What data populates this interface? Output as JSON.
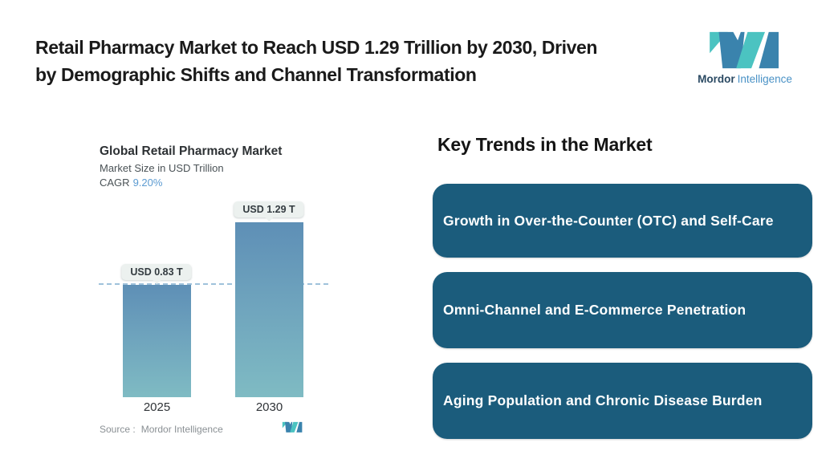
{
  "header": {
    "title_lines": [
      "Retail Pharmacy Market to Reach USD 1.29 Trillion by 2030, Driven",
      "by Demographic Shifts and Channel Transformation"
    ],
    "brand": {
      "name_primary": "Mordor",
      "name_secondary": "Intelligence"
    }
  },
  "chart": {
    "title": "Global Retail Pharmacy Market",
    "subtitle": "Market Size in USD Trillion",
    "cagr_label": "CAGR",
    "cagr_value": "9.20%",
    "source_label": "Source :",
    "source_value": "Mordor Intelligence"
  },
  "chart_data": {
    "type": "bar",
    "title": "Global Retail Pharmacy Market",
    "subtitle": "Market Size in USD Trillion",
    "cagr": "9.20%",
    "unit": "USD Trillion",
    "categories": [
      "2025",
      "2030"
    ],
    "values": [
      0.83,
      1.29
    ],
    "data_labels": [
      "USD 0.83 T",
      "USD 1.29 T"
    ],
    "reference_line_value": 0.83,
    "ylim": [
      0,
      1.29
    ],
    "grid": false,
    "legend": false,
    "source": "Mordor Intelligence"
  },
  "key_trends": {
    "heading": "Key Trends in the Market",
    "items": [
      "Growth in Over-the-Counter (OTC) and Self-Care",
      "Omni-Channel and E-Commerce Penetration",
      "Aging Population and Chronic Disease Burden"
    ]
  },
  "colors": {
    "trend_box": "#1b5c7c",
    "bar_top": "#5e8fb6",
    "bar_bottom": "#7fbbc3",
    "dashed_line": "#9fc2db",
    "label_pill_bg": "#ecf1ef",
    "cagr_value": "#5c9bd1",
    "logo_blue": "#3a83ad",
    "logo_teal": "#4bc3c1",
    "brand_primary_text": "#2b4a63",
    "brand_secondary_text": "#4a92c6"
  }
}
